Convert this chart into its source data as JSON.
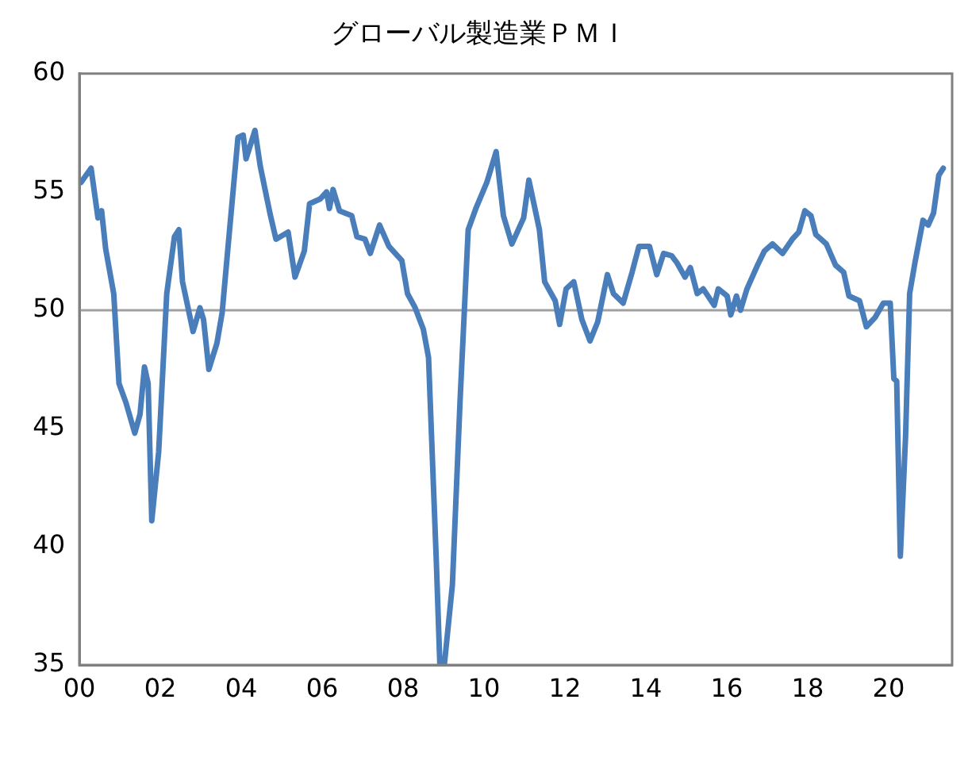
{
  "chart_data": {
    "type": "line",
    "title": "グローバル製造業ＰＭＩ",
    "x": [
      2000.04,
      2000.29,
      2000.46,
      2000.55,
      2000.65,
      2000.85,
      2000.98,
      2001.15,
      2001.37,
      2001.5,
      2001.61,
      2001.7,
      2001.79,
      2001.96,
      2002.16,
      2002.35,
      2002.46,
      2002.55,
      2002.81,
      2002.98,
      2003.07,
      2003.2,
      2003.4,
      2003.53,
      2003.66,
      2003.92,
      2004.05,
      2004.12,
      2004.34,
      2004.47,
      2004.71,
      2004.86,
      2005.16,
      2005.33,
      2005.56,
      2005.69,
      2005.95,
      2006.11,
      2006.18,
      2006.27,
      2006.43,
      2006.73,
      2006.86,
      2007.06,
      2007.19,
      2007.42,
      2007.65,
      2007.97,
      2008.11,
      2008.3,
      2008.5,
      2008.63,
      2008.82,
      2008.91,
      2009.02,
      2009.22,
      2009.41,
      2009.61,
      2009.8,
      2010.07,
      2010.3,
      2010.48,
      2010.69,
      2010.98,
      2011.11,
      2011.37,
      2011.5,
      2011.76,
      2011.87,
      2012.03,
      2012.22,
      2012.42,
      2012.62,
      2012.81,
      2013.05,
      2013.2,
      2013.44,
      2013.66,
      2013.83,
      2014.09,
      2014.27,
      2014.44,
      2014.64,
      2014.77,
      2014.97,
      2015.1,
      2015.27,
      2015.42,
      2015.69,
      2015.79,
      2016.01,
      2016.1,
      2016.24,
      2016.34,
      2016.5,
      2016.76,
      2016.93,
      2017.13,
      2017.38,
      2017.62,
      2017.78,
      2017.93,
      2018.08,
      2018.2,
      2018.46,
      2018.69,
      2018.89,
      2019.02,
      2019.28,
      2019.45,
      2019.67,
      2019.87,
      2020.04,
      2020.13,
      2020.2,
      2020.29,
      2020.42,
      2020.52,
      2020.65,
      2020.85,
      2020.98,
      2021.11,
      2021.24,
      2021.35
    ],
    "series": [
      {
        "color": "#4a7ebb",
        "values": [
          55.4,
          56.0,
          53.9,
          54.2,
          52.6,
          50.7,
          46.9,
          46.1,
          44.8,
          45.6,
          47.6,
          46.9,
          41.1,
          44.0,
          50.7,
          53.1,
          53.4,
          51.2,
          49.1,
          50.1,
          49.6,
          47.5,
          48.6,
          49.9,
          52.4,
          57.3,
          57.4,
          56.4,
          57.6,
          56.1,
          54.1,
          53.0,
          53.3,
          51.4,
          52.5,
          54.5,
          54.7,
          55.0,
          54.3,
          55.1,
          54.2,
          54.0,
          53.1,
          53.0,
          52.4,
          53.6,
          52.7,
          52.1,
          50.7,
          50.1,
          49.2,
          48.0,
          39.5,
          35.0,
          35.0,
          38.4,
          46.2,
          53.4,
          54.3,
          55.4,
          56.7,
          54.0,
          52.8,
          53.9,
          55.5,
          53.4,
          51.2,
          50.4,
          49.4,
          50.9,
          51.2,
          49.6,
          48.7,
          49.5,
          51.5,
          50.7,
          50.3,
          51.6,
          52.7,
          52.7,
          51.5,
          52.4,
          52.3,
          52.0,
          51.4,
          51.8,
          50.7,
          50.9,
          50.2,
          50.9,
          50.6,
          49.8,
          50.6,
          50.0,
          50.9,
          51.9,
          52.5,
          52.8,
          52.4,
          53.0,
          53.3,
          54.2,
          54.0,
          53.2,
          52.8,
          51.9,
          51.6,
          50.6,
          50.4,
          49.3,
          49.7,
          50.3,
          50.3,
          47.1,
          47.0,
          39.6,
          44.7,
          50.7,
          52.0,
          53.8,
          53.6,
          54.1,
          55.7,
          56.0
        ]
      }
    ],
    "xlim": [
      2000,
      2021.57
    ],
    "xticks": [
      {
        "value": 2000,
        "label": "00"
      },
      {
        "value": 2002,
        "label": "02"
      },
      {
        "value": 2004,
        "label": "04"
      },
      {
        "value": 2006,
        "label": "06"
      },
      {
        "value": 2008,
        "label": "08"
      },
      {
        "value": 2010,
        "label": "10"
      },
      {
        "value": 2012,
        "label": "12"
      },
      {
        "value": 2014,
        "label": "14"
      },
      {
        "value": 2016,
        "label": "16"
      },
      {
        "value": 2018,
        "label": "18"
      },
      {
        "value": 2020,
        "label": "20"
      }
    ],
    "ylim": [
      35,
      60
    ],
    "yticks": [
      35,
      40,
      45,
      50,
      55,
      60
    ],
    "ref_lines": [
      {
        "axis": "y",
        "value": 50,
        "color": "#a0a0a0"
      }
    ],
    "grid": false,
    "legend": false,
    "marker": "none",
    "line_style": "solid"
  }
}
